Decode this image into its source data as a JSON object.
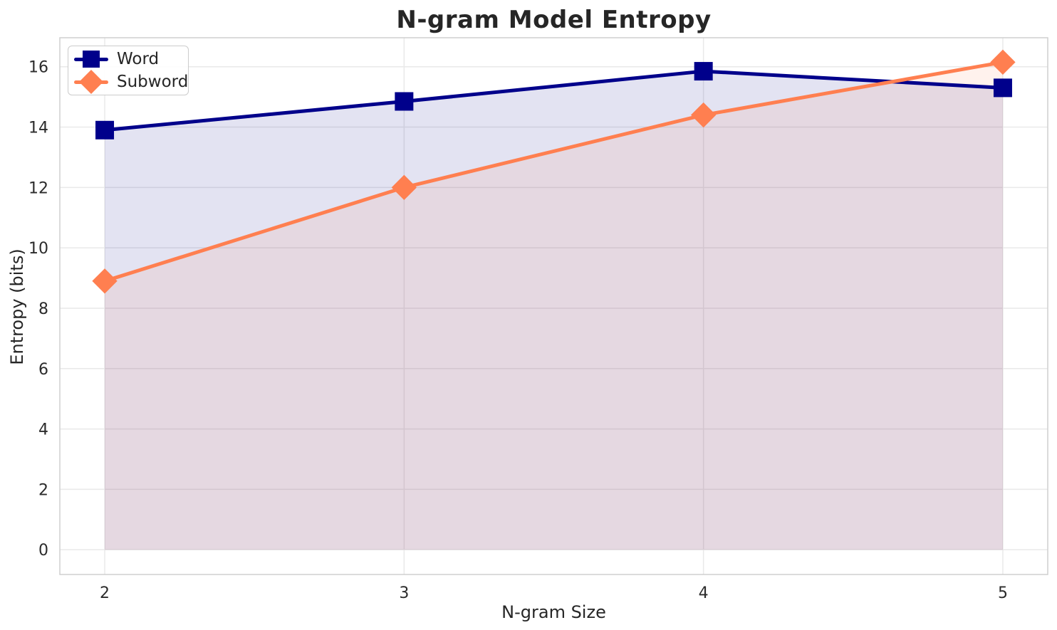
{
  "chart_data": {
    "type": "line",
    "title": "N-gram Model Entropy",
    "xlabel": "N-gram Size",
    "ylabel": "Entropy (bits)",
    "x": [
      2,
      3,
      4,
      5
    ],
    "series": [
      {
        "name": "Word",
        "color": "#00008b",
        "marker": "square",
        "values": [
          13.9,
          14.85,
          15.85,
          15.3
        ],
        "fill_alpha": 0.11
      },
      {
        "name": "Subword",
        "color": "#ff7f50",
        "marker": "diamond",
        "values": [
          8.9,
          12.0,
          14.4,
          16.15
        ],
        "fill_alpha": 0.1
      }
    ],
    "area_baseline": 0,
    "xlim": [
      1.85,
      5.15
    ],
    "ylim": [
      -0.82,
      16.96
    ],
    "xticks": [
      2,
      3,
      4,
      5
    ],
    "yticks": [
      0,
      2,
      4,
      6,
      8,
      10,
      12,
      14,
      16
    ],
    "grid": true,
    "grid_color": "#e9e9e9",
    "spine_color": "#cfcfcf",
    "text_color": "#2b2b2b",
    "legend_position": "upper-left"
  }
}
